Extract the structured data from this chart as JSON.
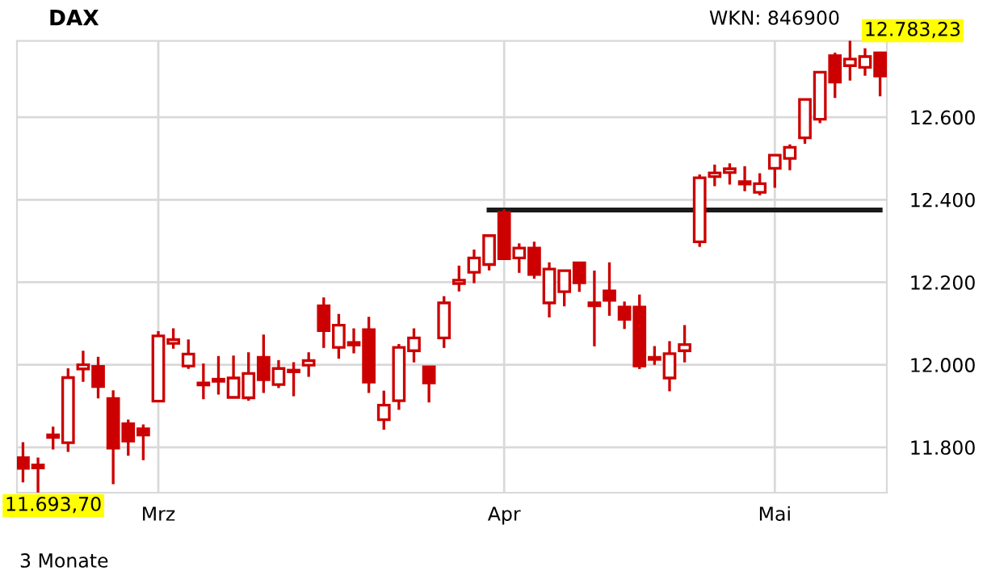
{
  "chart_data": {
    "type": "candlestick",
    "title": "DAX",
    "annotations": [
      "WKN: 846900",
      "12.783,23",
      "11.693,70",
      "3 Monate"
    ],
    "categories": [
      null,
      null,
      null,
      null,
      null,
      null,
      null,
      null,
      null,
      "Mrz",
      null,
      null,
      null,
      null,
      null,
      null,
      null,
      null,
      null,
      null,
      null,
      null,
      null,
      null,
      null,
      null,
      null,
      null,
      null,
      null,
      null,
      null,
      "Apr",
      null,
      null,
      null,
      null,
      null,
      null,
      null,
      null,
      null,
      null,
      null,
      null,
      null,
      null,
      null,
      null,
      null,
      "Mai",
      null,
      null,
      null,
      null,
      null,
      null,
      null
    ],
    "color": "#cc0000",
    "ohlc": [
      [
        11775,
        11809,
        11718,
        11749
      ],
      [
        11757,
        11772,
        11693.7,
        11750
      ],
      [
        11830,
        11847,
        11798,
        11824
      ],
      [
        11811,
        11988,
        11792,
        11969
      ],
      [
        11990,
        12031,
        11962,
        12000
      ],
      [
        11996,
        12016,
        11922,
        11947
      ],
      [
        11918,
        11935,
        11714,
        11798
      ],
      [
        11857,
        11864,
        11783,
        11815
      ],
      [
        11845,
        11852,
        11772,
        11830
      ],
      [
        11912,
        12078,
        11912,
        12070
      ],
      [
        12052,
        12085,
        12042,
        12061
      ],
      [
        11997,
        12058,
        11993,
        12026
      ],
      [
        11956,
        12000,
        11920,
        11951
      ],
      [
        11965,
        12018,
        11931,
        11960
      ],
      [
        11921,
        12019,
        11921,
        11968
      ],
      [
        11920,
        12027,
        11916,
        11979
      ],
      [
        12018,
        12070,
        11935,
        11964
      ],
      [
        11952,
        12008,
        11947,
        11991
      ],
      [
        11987,
        12003,
        11927,
        11983
      ],
      [
        11999,
        12027,
        11974,
        12010
      ],
      [
        12143,
        12160,
        12044,
        12083
      ],
      [
        12042,
        12120,
        12018,
        12096
      ],
      [
        12054,
        12085,
        12031,
        12048
      ],
      [
        12085,
        12113,
        11935,
        11958
      ],
      [
        11867,
        11934,
        11846,
        11902
      ],
      [
        11913,
        12047,
        11894,
        12042
      ],
      [
        12034,
        12085,
        12009,
        12065
      ],
      [
        11995,
        11995,
        11912,
        11956
      ],
      [
        12065,
        12163,
        12044,
        12150
      ],
      [
        12197,
        12237,
        12181,
        12205
      ],
      [
        12224,
        12276,
        12201,
        12259
      ],
      [
        12243,
        12313,
        12232,
        12313
      ],
      [
        12369,
        12374,
        12257,
        12257
      ],
      [
        12259,
        12291,
        12226,
        12283
      ],
      [
        12283,
        12295,
        12212,
        12219
      ],
      [
        12150,
        12245,
        12118,
        12232
      ],
      [
        12177,
        12228,
        12145,
        12228
      ],
      [
        12247,
        12247,
        12180,
        12199
      ],
      [
        12150,
        12225,
        12048,
        12143
      ],
      [
        12179,
        12245,
        12122,
        12156
      ],
      [
        12140,
        12150,
        12090,
        12110
      ],
      [
        12140,
        12167,
        11993,
        11997
      ],
      [
        12018,
        12042,
        12003,
        12013
      ],
      [
        11968,
        12054,
        11939,
        12027
      ],
      [
        12034,
        12093,
        12009,
        12049
      ],
      [
        12298,
        12458,
        12289,
        12453
      ],
      [
        12456,
        12482,
        12436,
        12465
      ],
      [
        12466,
        12485,
        12440,
        12475
      ],
      [
        12444,
        12478,
        12424,
        12438
      ],
      [
        12418,
        12461,
        12414,
        12439
      ],
      [
        12476,
        12508,
        12432,
        12508
      ],
      [
        12500,
        12531,
        12475,
        12527
      ],
      [
        12550,
        12643,
        12539,
        12643
      ],
      [
        12595,
        12709,
        12589,
        12709
      ],
      [
        12749,
        12753,
        12650,
        12685
      ],
      [
        12725,
        12783.23,
        12692,
        12741
      ],
      [
        12721,
        12764,
        12704,
        12747
      ],
      [
        12756,
        12756,
        12654,
        12700
      ]
    ],
    "series": [
      {
        "type": "line",
        "color": "#1a1a1a",
        "values": [
          null,
          null,
          null,
          null,
          null,
          null,
          null,
          null,
          null,
          null,
          null,
          null,
          null,
          null,
          null,
          null,
          null,
          null,
          null,
          null,
          null,
          null,
          null,
          null,
          null,
          null,
          null,
          null,
          null,
          null,
          null,
          12375,
          12375,
          12375,
          12375,
          12375,
          12375,
          12375,
          12375,
          12375,
          12375,
          12375,
          12375,
          12375,
          12375,
          12375,
          12375,
          12375,
          12375,
          12375,
          12375,
          12375,
          12375,
          12375,
          12375,
          12375,
          12375,
          12375
        ]
      }
    ],
    "ylim": [
      11690,
      12785
    ],
    "yticks": [
      {
        "value": 11800,
        "label": "11.800"
      },
      {
        "value": 12000,
        "label": "12.000"
      },
      {
        "value": 12200,
        "label": "12.200"
      },
      {
        "value": 12400,
        "label": "12.400"
      },
      {
        "value": 12600,
        "label": "12.600"
      }
    ],
    "grid": true,
    "legend": false
  }
}
